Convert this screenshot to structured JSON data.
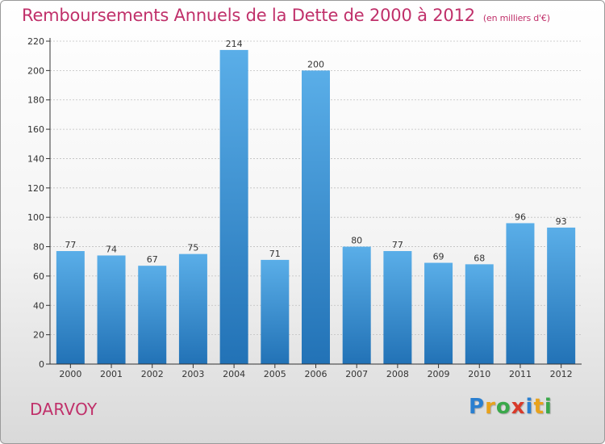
{
  "title": "Remboursements Annuels de la Dette de 2000 à 2012",
  "subtitle": "(en milliers d'€)",
  "commune": "DARVOY",
  "logo": {
    "letters": [
      "P",
      "r",
      "o",
      "x",
      "i",
      "t",
      "i"
    ],
    "colors": [
      "#2a7fd0",
      "#e8a21c",
      "#3aa84a",
      "#d83a2a",
      "#2a7fd0",
      "#e8a21c",
      "#3aa84a"
    ]
  },
  "colors": {
    "bar_top": "#5aaee8",
    "bar_bottom": "#2272b6",
    "axis": "#333333",
    "grid": "#bfbfbf",
    "title": "#c0306a"
  },
  "chart_data": {
    "type": "bar",
    "title": "Remboursements Annuels de la Dette de 2000 à 2012",
    "subtitle": "(en milliers d'€)",
    "categories": [
      "2000",
      "2001",
      "2002",
      "2003",
      "2004",
      "2005",
      "2006",
      "2007",
      "2008",
      "2009",
      "2010",
      "2011",
      "2012"
    ],
    "values": [
      77,
      74,
      67,
      75,
      214,
      71,
      200,
      80,
      77,
      69,
      68,
      96,
      93
    ],
    "ylim": [
      0,
      220
    ],
    "yticks": [
      0,
      20,
      40,
      60,
      80,
      100,
      120,
      140,
      160,
      180,
      200,
      220
    ],
    "grid": true,
    "xlabel": "",
    "ylabel": ""
  }
}
